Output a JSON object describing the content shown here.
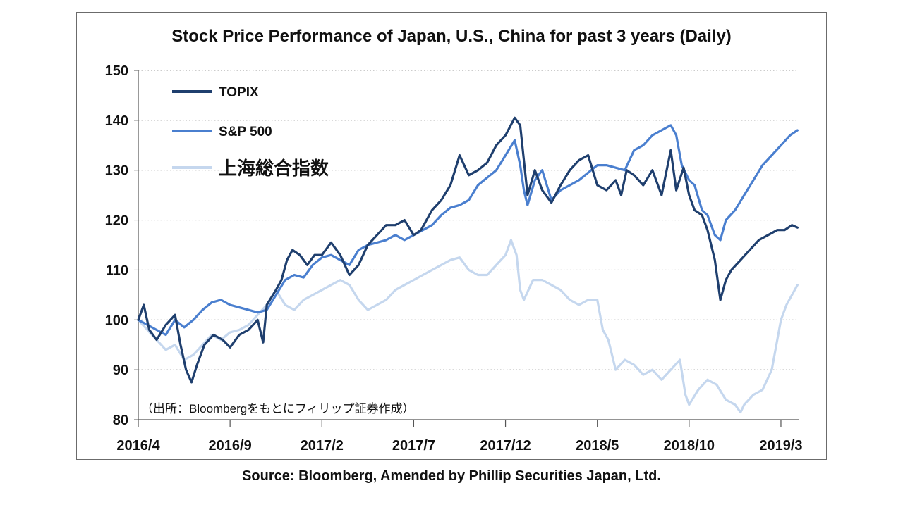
{
  "chart_data": {
    "type": "line",
    "title": "Stock Price Performance of Japan, U.S., China for past 3 years (Daily)",
    "source": "Source: Bloomberg, Amended by Phillip Securities Japan, Ltd.",
    "annotation": "（出所：Bloombergをもとにフィリップ証券作成）",
    "ylim": [
      80,
      150
    ],
    "yticks": [
      80,
      90,
      100,
      110,
      120,
      130,
      140,
      150
    ],
    "xlim": [
      0,
      36
    ],
    "xtick_labels": [
      {
        "t": 0,
        "label": "2016/4"
      },
      {
        "t": 5,
        "label": "2016/9"
      },
      {
        "t": 10,
        "label": "2017/2"
      },
      {
        "t": 15,
        "label": "2017/7"
      },
      {
        "t": 20,
        "label": "2017/12"
      },
      {
        "t": 25,
        "label": "2018/5"
      },
      {
        "t": 30,
        "label": "2018/10"
      },
      {
        "t": 35,
        "label": "2019/3"
      }
    ],
    "grid": "horizontal-dotted",
    "legend_position": "top-left",
    "series": [
      {
        "name": "TOPIX",
        "color": "#1f3f6e",
        "points": [
          [
            0,
            100
          ],
          [
            0.3,
            103
          ],
          [
            0.6,
            98
          ],
          [
            1,
            96
          ],
          [
            1.5,
            99
          ],
          [
            2,
            101
          ],
          [
            2.3,
            95
          ],
          [
            2.6,
            90
          ],
          [
            2.9,
            87.5
          ],
          [
            3.2,
            91
          ],
          [
            3.6,
            95
          ],
          [
            4.1,
            97
          ],
          [
            4.6,
            96
          ],
          [
            5,
            94.5
          ],
          [
            5.5,
            97
          ],
          [
            6,
            98
          ],
          [
            6.5,
            100
          ],
          [
            6.8,
            95.5
          ],
          [
            7.0,
            103
          ],
          [
            7.5,
            106
          ],
          [
            7.8,
            108
          ],
          [
            8.1,
            112
          ],
          [
            8.4,
            114
          ],
          [
            8.8,
            113
          ],
          [
            9.2,
            111
          ],
          [
            9.6,
            113
          ],
          [
            10,
            113
          ],
          [
            10.5,
            115.5
          ],
          [
            11,
            113
          ],
          [
            11.5,
            109
          ],
          [
            12,
            111
          ],
          [
            12.5,
            115
          ],
          [
            13,
            117
          ],
          [
            13.5,
            119
          ],
          [
            14,
            119
          ],
          [
            14.5,
            120
          ],
          [
            15,
            117
          ],
          [
            15.4,
            118
          ],
          [
            16,
            122
          ],
          [
            16.5,
            124
          ],
          [
            17,
            127
          ],
          [
            17.5,
            133
          ],
          [
            18,
            129
          ],
          [
            18.5,
            130
          ],
          [
            19,
            131.5
          ],
          [
            19.5,
            135
          ],
          [
            20,
            137
          ],
          [
            20.5,
            140.5
          ],
          [
            20.8,
            139
          ],
          [
            21,
            132
          ],
          [
            21.2,
            125
          ],
          [
            21.6,
            130
          ],
          [
            22,
            126
          ],
          [
            22.5,
            123.5
          ],
          [
            23,
            127
          ],
          [
            23.5,
            130
          ],
          [
            24,
            132
          ],
          [
            24.5,
            133
          ],
          [
            25,
            127
          ],
          [
            25.5,
            126
          ],
          [
            26,
            128
          ],
          [
            26.3,
            125
          ],
          [
            26.6,
            130
          ],
          [
            27,
            129
          ],
          [
            27.5,
            127
          ],
          [
            28,
            130
          ],
          [
            28.5,
            125
          ],
          [
            29,
            134
          ],
          [
            29.3,
            126
          ],
          [
            29.7,
            130.5
          ],
          [
            30,
            125
          ],
          [
            30.3,
            122
          ],
          [
            30.7,
            121
          ],
          [
            31,
            118
          ],
          [
            31.4,
            112
          ],
          [
            31.7,
            104
          ],
          [
            32,
            108
          ],
          [
            32.3,
            110
          ],
          [
            32.8,
            112
          ],
          [
            33.3,
            114
          ],
          [
            33.8,
            116
          ],
          [
            34.3,
            117
          ],
          [
            34.8,
            118
          ],
          [
            35.2,
            118
          ],
          [
            35.6,
            119
          ],
          [
            35.9,
            118.5
          ]
        ]
      },
      {
        "name": "S&P 500",
        "color": "#4a7fcf",
        "points": [
          [
            0,
            100
          ],
          [
            0.5,
            99
          ],
          [
            1,
            98
          ],
          [
            1.5,
            97
          ],
          [
            2,
            100
          ],
          [
            2.5,
            98.5
          ],
          [
            3,
            100
          ],
          [
            3.5,
            102
          ],
          [
            4,
            103.5
          ],
          [
            4.5,
            104
          ],
          [
            5,
            103
          ],
          [
            5.5,
            102.5
          ],
          [
            6,
            102
          ],
          [
            6.5,
            101.5
          ],
          [
            7,
            102
          ],
          [
            7.5,
            105
          ],
          [
            8,
            108
          ],
          [
            8.5,
            109
          ],
          [
            9,
            108.5
          ],
          [
            9.5,
            111
          ],
          [
            10,
            112.5
          ],
          [
            10.5,
            113
          ],
          [
            11,
            112
          ],
          [
            11.5,
            111
          ],
          [
            12,
            114
          ],
          [
            12.5,
            115
          ],
          [
            13,
            115.5
          ],
          [
            13.5,
            116
          ],
          [
            14,
            117
          ],
          [
            14.5,
            116
          ],
          [
            15,
            117
          ],
          [
            15.5,
            118
          ],
          [
            16,
            119
          ],
          [
            16.5,
            121
          ],
          [
            17,
            122.5
          ],
          [
            17.5,
            123
          ],
          [
            18,
            124
          ],
          [
            18.5,
            127
          ],
          [
            19,
            128.5
          ],
          [
            19.5,
            130
          ],
          [
            20,
            133
          ],
          [
            20.5,
            136
          ],
          [
            20.8,
            131
          ],
          [
            21,
            126
          ],
          [
            21.2,
            123
          ],
          [
            21.6,
            128
          ],
          [
            22,
            130
          ],
          [
            22.5,
            124
          ],
          [
            23,
            126
          ],
          [
            23.5,
            127
          ],
          [
            24,
            128
          ],
          [
            24.5,
            129.5
          ],
          [
            25,
            131
          ],
          [
            25.5,
            131
          ],
          [
            26,
            130.5
          ],
          [
            26.5,
            130
          ],
          [
            27,
            134
          ],
          [
            27.5,
            135
          ],
          [
            28,
            137
          ],
          [
            28.5,
            138
          ],
          [
            29,
            139
          ],
          [
            29.3,
            137
          ],
          [
            29.6,
            131
          ],
          [
            30,
            128
          ],
          [
            30.3,
            127
          ],
          [
            30.7,
            122
          ],
          [
            31,
            121
          ],
          [
            31.4,
            117
          ],
          [
            31.7,
            116
          ],
          [
            32,
            120
          ],
          [
            32.5,
            122
          ],
          [
            33,
            125
          ],
          [
            33.5,
            128
          ],
          [
            34,
            131
          ],
          [
            34.5,
            133
          ],
          [
            35,
            135
          ],
          [
            35.5,
            137
          ],
          [
            35.9,
            138
          ]
        ]
      },
      {
        "name": "上海総合指数",
        "color": "#c5d7ee",
        "points": [
          [
            0,
            100
          ],
          [
            0.5,
            98
          ],
          [
            1,
            96
          ],
          [
            1.5,
            94
          ],
          [
            2,
            95
          ],
          [
            2.5,
            92
          ],
          [
            3,
            93
          ],
          [
            3.5,
            95
          ],
          [
            4,
            97
          ],
          [
            4.5,
            96
          ],
          [
            5,
            97.5
          ],
          [
            5.5,
            98
          ],
          [
            6,
            99
          ],
          [
            6.5,
            101
          ],
          [
            7,
            103
          ],
          [
            7.5,
            106
          ],
          [
            8,
            103
          ],
          [
            8.5,
            102
          ],
          [
            9,
            104
          ],
          [
            9.5,
            105
          ],
          [
            10,
            106
          ],
          [
            10.5,
            107
          ],
          [
            11,
            108
          ],
          [
            11.5,
            107
          ],
          [
            12,
            104
          ],
          [
            12.5,
            102
          ],
          [
            13,
            103
          ],
          [
            13.5,
            104
          ],
          [
            14,
            106
          ],
          [
            14.5,
            107
          ],
          [
            15,
            108
          ],
          [
            15.5,
            109
          ],
          [
            16,
            110
          ],
          [
            16.5,
            111
          ],
          [
            17,
            112
          ],
          [
            17.5,
            112.5
          ],
          [
            18,
            110
          ],
          [
            18.5,
            109
          ],
          [
            19,
            109
          ],
          [
            19.5,
            111
          ],
          [
            20,
            113
          ],
          [
            20.3,
            116
          ],
          [
            20.6,
            113
          ],
          [
            20.8,
            106
          ],
          [
            21,
            104
          ],
          [
            21.5,
            108
          ],
          [
            22,
            108
          ],
          [
            22.5,
            107
          ],
          [
            23,
            106
          ],
          [
            23.5,
            104
          ],
          [
            24,
            103
          ],
          [
            24.5,
            104
          ],
          [
            25,
            104
          ],
          [
            25.3,
            98
          ],
          [
            25.6,
            96
          ],
          [
            26,
            90
          ],
          [
            26.5,
            92
          ],
          [
            27,
            91
          ],
          [
            27.5,
            89
          ],
          [
            28,
            90
          ],
          [
            28.5,
            88
          ],
          [
            29,
            90
          ],
          [
            29.5,
            92
          ],
          [
            29.8,
            85
          ],
          [
            30,
            83
          ],
          [
            30.5,
            86
          ],
          [
            31,
            88
          ],
          [
            31.5,
            87
          ],
          [
            32,
            84
          ],
          [
            32.5,
            83
          ],
          [
            32.8,
            81.5
          ],
          [
            33,
            83
          ],
          [
            33.5,
            85
          ],
          [
            34,
            86
          ],
          [
            34.5,
            90
          ],
          [
            34.8,
            96
          ],
          [
            35,
            100
          ],
          [
            35.3,
            103
          ],
          [
            35.6,
            105
          ],
          [
            35.9,
            107
          ]
        ]
      }
    ]
  }
}
